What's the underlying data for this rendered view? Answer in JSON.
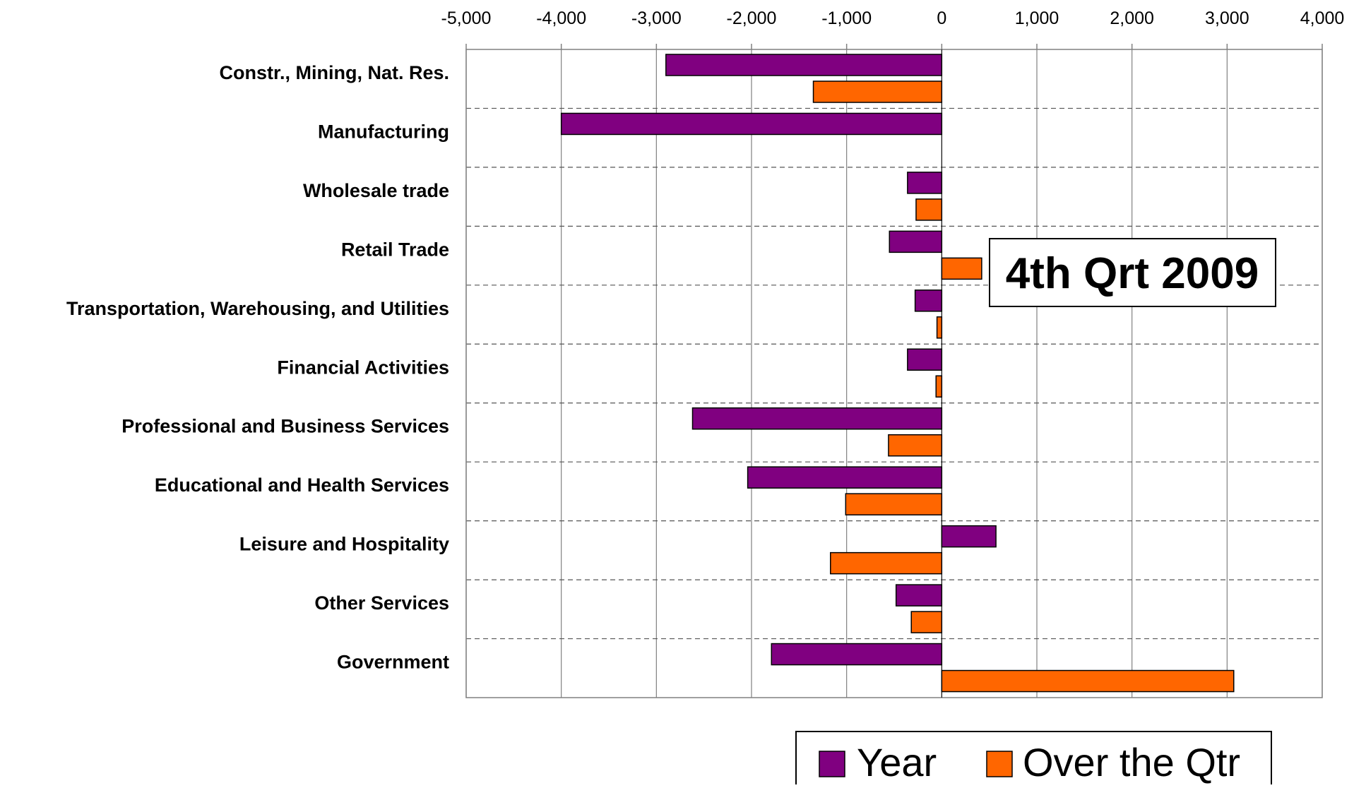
{
  "annotation": "4th Qrt 2009",
  "colors": {
    "year": "#800080",
    "quarter": "#FF6600",
    "bar_stroke": "#000000",
    "grid": "#808080",
    "category_divider": "#555555"
  },
  "chart_data": {
    "type": "bar",
    "orientation": "horizontal",
    "categories": [
      "Constr., Mining, Nat. Res.",
      "Manufacturing",
      "Wholesale trade",
      "Retail Trade",
      "Transportation, Warehousing, and Utilities",
      "Financial Activities",
      "Professional and Business Services",
      "Educational and Health Services",
      "Leisure and Hospitality",
      "Other Services",
      "Government"
    ],
    "series": [
      {
        "name": "Year",
        "values": [
          -2900,
          -4000,
          -360,
          -550,
          -280,
          -360,
          -2620,
          -2040,
          570,
          -480,
          -1790
        ]
      },
      {
        "name": "Over the Qtr",
        "values": [
          -1350,
          0,
          -270,
          420,
          -50,
          -60,
          -560,
          -1010,
          -1170,
          -320,
          3070
        ]
      }
    ],
    "xlim": [
      -5000,
      4000
    ],
    "xticks": [
      -5000,
      -4000,
      -3000,
      -2000,
      -1000,
      0,
      1000,
      2000,
      3000,
      4000
    ],
    "xtick_labels": [
      "-5,000",
      "-4,000",
      "-3,000",
      "-2,000",
      "-1,000",
      "0",
      "1,000",
      "2,000",
      "3,000",
      "4,000"
    ],
    "x_axis_position": "top",
    "grid": true,
    "legend_position": "bottom-right",
    "title": "",
    "xlabel": "",
    "ylabel": ""
  }
}
